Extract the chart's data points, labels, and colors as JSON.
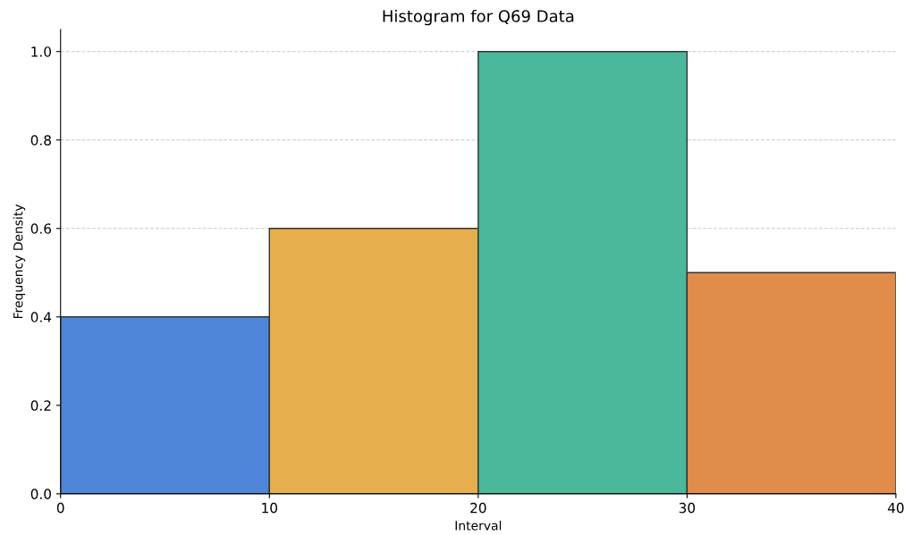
{
  "chart_data": {
    "type": "histogram",
    "title": "Histogram for Q69 Data",
    "xlabel": "Interval",
    "ylabel": "Frequency Density",
    "bins": [
      0,
      10,
      20,
      30,
      40
    ],
    "values": [
      0.4,
      0.6,
      1.0,
      0.5
    ],
    "colors": [
      "#4f86d9",
      "#e6ae4c",
      "#4bb89b",
      "#e08c4a"
    ],
    "xlim": [
      0,
      40
    ],
    "xticks": [
      0,
      10,
      20,
      30,
      40
    ],
    "ylim": [
      0,
      1.05
    ],
    "yticks": [
      {
        "value": 0,
        "label": "0.0"
      },
      0.2,
      0.4,
      0.6,
      0.8,
      {
        "value": 1,
        "label": "1.0"
      }
    ],
    "grid": "y"
  }
}
